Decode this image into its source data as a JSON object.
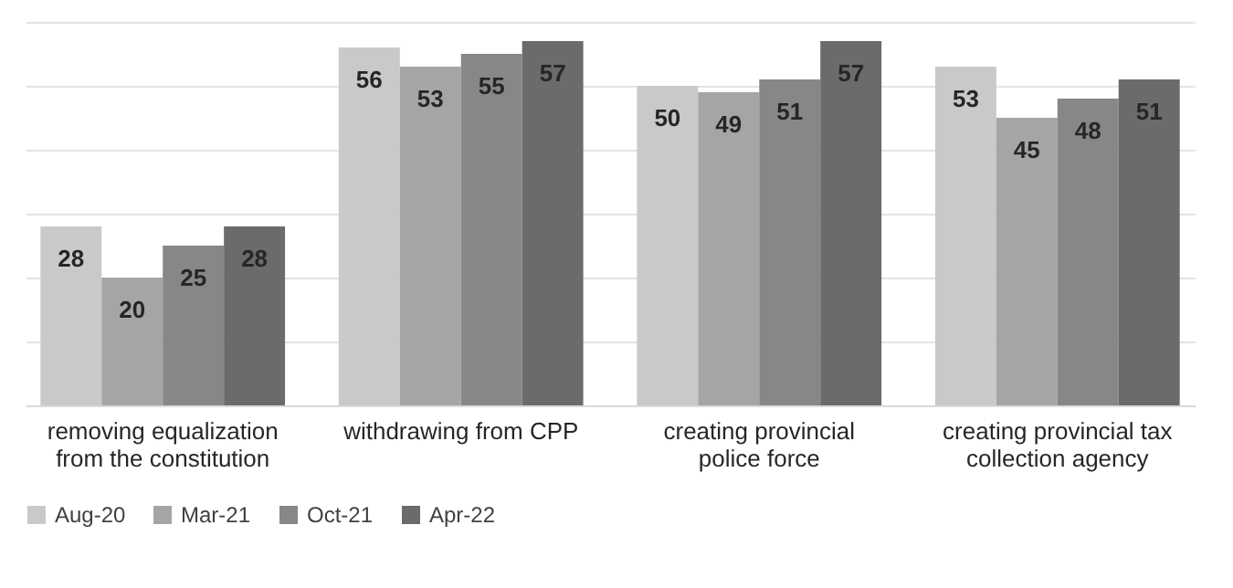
{
  "chart_data": {
    "type": "bar",
    "categories": [
      "removing equalization from the constitution",
      "withdrawing from CPP",
      "creating provincial police force",
      "creating provincial tax collection agency"
    ],
    "series": [
      {
        "name": "Aug-20",
        "color": "#c9c9c9",
        "values": [
          28,
          56,
          50,
          53
        ]
      },
      {
        "name": "Mar-21",
        "color": "#a5a5a5",
        "values": [
          20,
          53,
          49,
          45
        ]
      },
      {
        "name": "Oct-21",
        "color": "#878787",
        "values": [
          25,
          55,
          51,
          48
        ]
      },
      {
        "name": "Apr-22",
        "color": "#6b6b6b",
        "values": [
          28,
          57,
          57,
          51
        ]
      }
    ],
    "ylim": [
      0,
      60
    ],
    "yticks": [
      {
        "value": 0,
        "label": null
      },
      {
        "value": 10,
        "label": null
      },
      {
        "value": 20,
        "label": null
      },
      {
        "value": 30,
        "label": null
      },
      {
        "value": 40,
        "label": null
      },
      {
        "value": 50,
        "label": null
      },
      {
        "value": 60,
        "label": null
      }
    ],
    "tick_labels": "x",
    "grid": "y",
    "legend": "bottom",
    "data_labels": true
  }
}
